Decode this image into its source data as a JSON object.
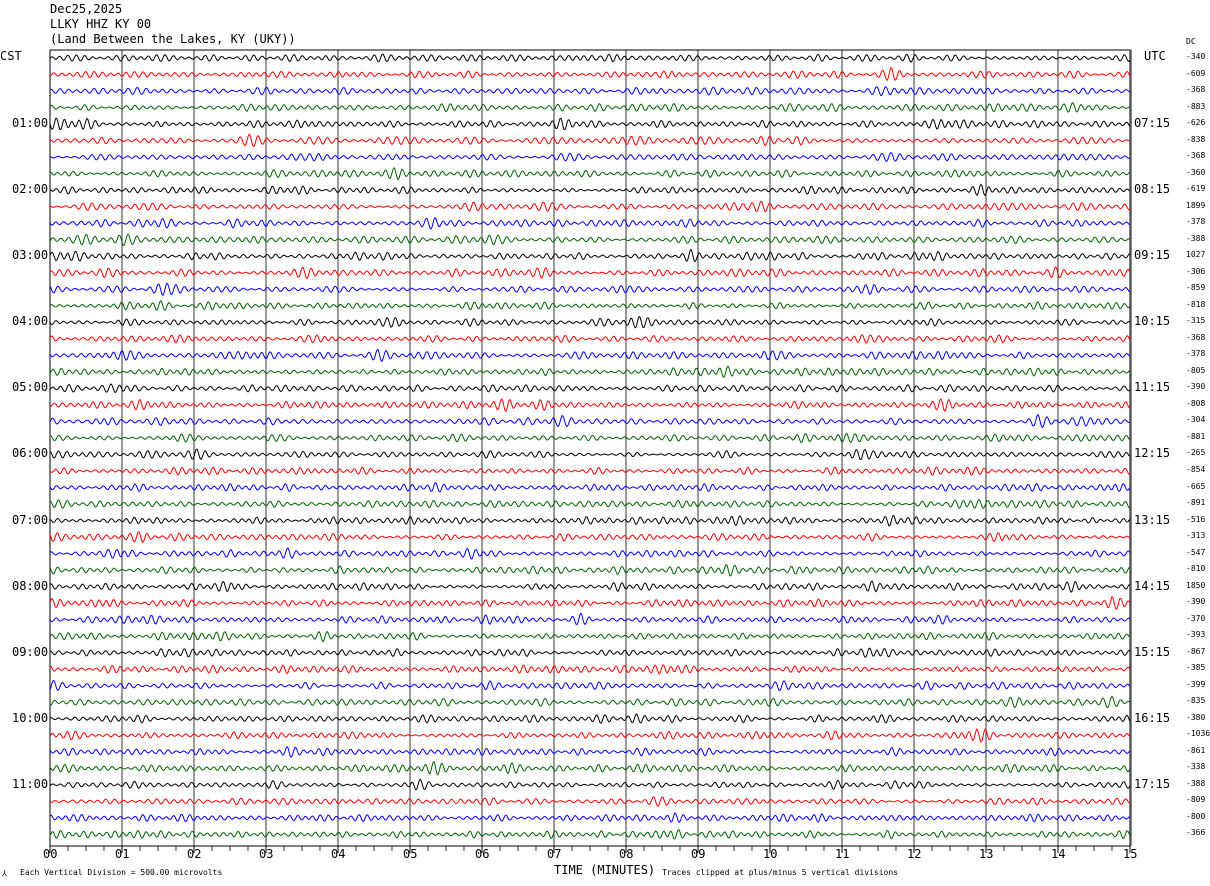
{
  "header": {
    "date": "Dec25,2025",
    "station": "LLKY HHZ KY 00",
    "location": "(Land Between the Lakes, KY (UKY))"
  },
  "left_timezone": "CST",
  "right_timezone": "UTC",
  "dc_label": "DC",
  "footer": {
    "scale_text": "Each Vertical Division =  500.00 microvolts",
    "xaxis_title": "TIME (MINUTES)",
    "clip_text": "Traces clipped at plus/minus 5 vertical divisions"
  },
  "colors": {
    "trace_cycle": [
      "#000000",
      "#ff0000",
      "#0000ff",
      "#006400"
    ],
    "grid": "#000000"
  },
  "chart_data": {
    "type": "line",
    "title": "LLKY HHZ KY 00 helicorder",
    "xlabel": "TIME (MINUTES)",
    "xlim": [
      0,
      15
    ],
    "x_ticks": [
      "00",
      "01",
      "02",
      "03",
      "04",
      "05",
      "06",
      "07",
      "08",
      "09",
      "10",
      "11",
      "12",
      "13",
      "14",
      "15"
    ],
    "trace_minutes": 15,
    "trace_count": 48,
    "left_hour_labels": [
      "01:00",
      "02:00",
      "03:00",
      "04:00",
      "05:00",
      "06:00",
      "07:00",
      "08:00",
      "09:00",
      "10:00",
      "11:00"
    ],
    "right_hour_labels": [
      "07:15",
      "08:15",
      "09:15",
      "10:15",
      "11:15",
      "12:15",
      "13:15",
      "14:15",
      "15:15",
      "16:15",
      "17:15"
    ],
    "dc_offsets": [
      "-340",
      "-609",
      "-368",
      "-883",
      "-626",
      "-838",
      "-368",
      "-360",
      "-619",
      "1899",
      "-378",
      "-388",
      "1027",
      "-306",
      "-859",
      "-818",
      "-315",
      "-368",
      "-378",
      "-805",
      "-390",
      "-808",
      "-304",
      "-881",
      "-265",
      "-854",
      "-665",
      "-891",
      "-516",
      "-313",
      "-547",
      "-810",
      "1850",
      "-390",
      "-370",
      "-393",
      "-867",
      "-385",
      "-399",
      "-835",
      "-380",
      "-1036",
      "-861",
      "-338",
      "-388",
      "-809",
      "-800",
      "-366"
    ],
    "vertical_division_microvolts": 500,
    "clip_divisions": 5
  }
}
